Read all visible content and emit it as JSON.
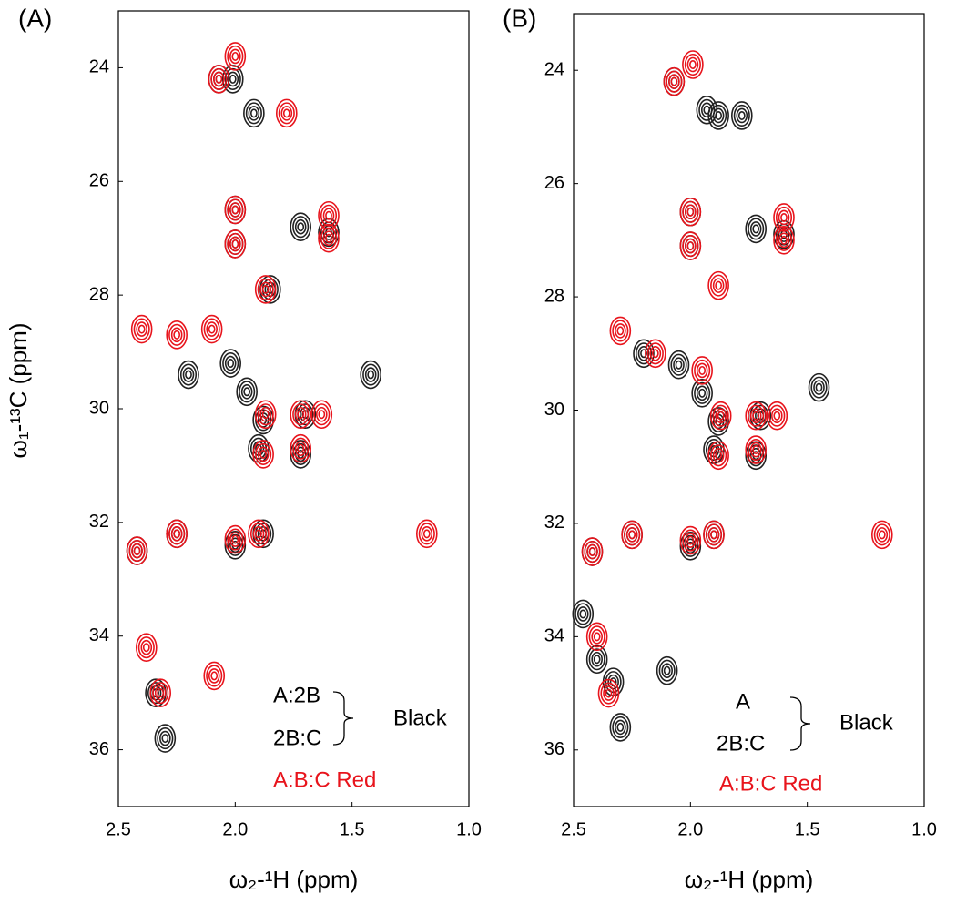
{
  "chart_data": [
    {
      "type": "contour",
      "panel_label": "(A)",
      "x_label": "ω₂-¹H (ppm)",
      "y_label": "ω₁-¹³C (ppm)",
      "xlim": [
        2.5,
        1.0
      ],
      "ylim": [
        37,
        23
      ],
      "xticks": [
        2.5,
        {
          "value": 2,
          "label": "2.0"
        },
        1.5,
        {
          "value": 1,
          "label": "1.0"
        }
      ],
      "yticks": [
        24,
        26,
        28,
        30,
        32,
        34,
        36
      ],
      "annotations": [
        "A:2B",
        "2B:C",
        "Black",
        "A:B:C Red"
      ],
      "series": [
        {
          "color": "#222222",
          "x": [
            2.07,
            2.01,
            1.92,
            2.0,
            2.0,
            1.6,
            1.72,
            1.85,
            2.2,
            2.02,
            1.95,
            1.42,
            1.88,
            1.7,
            1.9,
            1.72,
            2.42,
            2.25,
            2.0,
            1.88,
            2.34,
            2.3
          ],
          "y": [
            24.2,
            24.2,
            24.8,
            26.5,
            27.1,
            26.9,
            26.8,
            27.9,
            29.4,
            29.2,
            29.7,
            29.4,
            30.2,
            30.1,
            30.7,
            30.8,
            32.5,
            32.2,
            32.4,
            32.2,
            35.0,
            35.8
          ]
        },
        {
          "color": "#e8141c",
          "x": [
            2.07,
            2.0,
            1.78,
            2.0,
            2.0,
            1.6,
            1.6,
            1.87,
            2.4,
            2.25,
            2.1,
            1.87,
            1.72,
            1.63,
            1.88,
            1.72,
            2.42,
            2.25,
            2.0,
            1.9,
            1.18,
            2.38,
            2.32,
            2.09
          ],
          "y": [
            24.2,
            23.8,
            24.8,
            26.5,
            27.1,
            26.6,
            27.0,
            27.9,
            28.6,
            28.7,
            28.6,
            30.1,
            30.1,
            30.1,
            30.8,
            30.7,
            32.5,
            32.2,
            32.3,
            32.2,
            32.2,
            34.2,
            35.0,
            34.7
          ]
        }
      ]
    },
    {
      "type": "contour",
      "panel_label": "(B)",
      "x_label": "ω₂-¹H (ppm)",
      "xlim": [
        2.5,
        1.0
      ],
      "ylim": [
        37,
        23
      ],
      "xticks": [
        2.5,
        {
          "value": 2,
          "label": "2.0"
        },
        1.5,
        {
          "value": 1,
          "label": "1.0"
        }
      ],
      "yticks": [
        24,
        26,
        28,
        30,
        32,
        34,
        36
      ],
      "annotations": [
        "A",
        "2B:C",
        "Black",
        "A:B:C Red"
      ],
      "series": [
        {
          "color": "#222222",
          "x": [
            2.07,
            1.93,
            1.88,
            1.78,
            2.0,
            2.0,
            1.6,
            1.72,
            2.2,
            2.05,
            1.95,
            1.45,
            1.88,
            1.7,
            1.9,
            1.72,
            2.42,
            2.25,
            2.0,
            1.9,
            2.46,
            2.4,
            2.33,
            2.1,
            2.3
          ],
          "y": [
            24.2,
            24.7,
            24.8,
            24.8,
            26.5,
            27.1,
            26.9,
            26.8,
            29.0,
            29.2,
            29.7,
            29.6,
            30.2,
            30.1,
            30.7,
            30.8,
            32.5,
            32.2,
            32.4,
            32.2,
            33.6,
            34.4,
            34.8,
            34.6,
            35.6
          ]
        },
        {
          "color": "#e8141c",
          "x": [
            2.07,
            1.99,
            2.0,
            2.0,
            1.6,
            1.6,
            1.88,
            2.3,
            2.15,
            1.95,
            1.87,
            1.72,
            1.63,
            1.88,
            1.72,
            2.42,
            2.25,
            2.0,
            1.9,
            1.18,
            2.4,
            2.35
          ],
          "y": [
            24.2,
            23.9,
            26.5,
            27.1,
            26.6,
            27.0,
            27.8,
            28.6,
            29.0,
            29.3,
            30.1,
            30.1,
            30.1,
            30.8,
            30.7,
            32.5,
            32.2,
            32.3,
            32.2,
            32.2,
            34.0,
            35.0
          ]
        }
      ]
    }
  ]
}
